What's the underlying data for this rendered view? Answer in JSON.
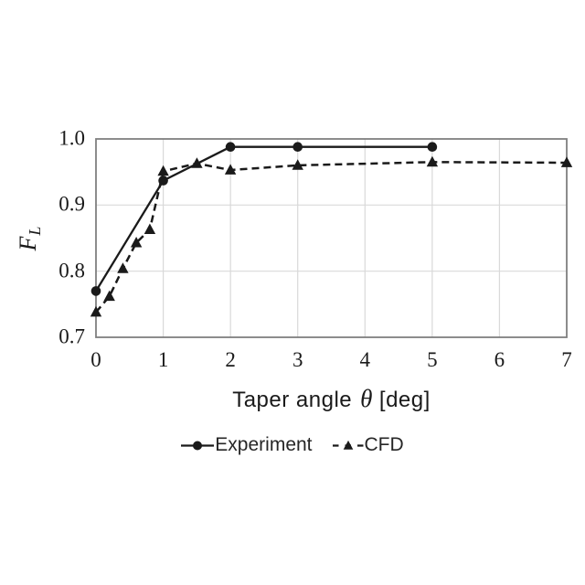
{
  "chart_data": {
    "type": "line",
    "title": "",
    "xlabel": {
      "prefix": "Taper angle",
      "symbol": "θ",
      "suffix": "[deg]"
    },
    "ylabel": {
      "letter": "F",
      "subscript": "L"
    },
    "xlim": [
      0,
      7
    ],
    "ylim": [
      0.7,
      1.0
    ],
    "x_ticks": [
      "0",
      "1",
      "2",
      "3",
      "4",
      "5",
      "6",
      "7"
    ],
    "y_ticks": [
      "1.0",
      "0.9",
      "0.8",
      "0.7"
    ],
    "grid": true,
    "legend_position": "bottom-center",
    "series": [
      {
        "name": "Experiment",
        "marker": "circle",
        "line_style": "solid",
        "color": "#1a1a1a",
        "x": [
          0,
          1,
          2,
          3,
          5
        ],
        "y": [
          0.77,
          0.937,
          0.988,
          0.988,
          0.988
        ]
      },
      {
        "name": "CFD",
        "marker": "triangle",
        "line_style": "dashed",
        "color": "#1a1a1a",
        "x": [
          0,
          0.2,
          0.4,
          0.6,
          0.8,
          1,
          1.5,
          2,
          3,
          5,
          7
        ],
        "y": [
          0.738,
          0.762,
          0.804,
          0.843,
          0.863,
          0.951,
          0.963,
          0.953,
          0.96,
          0.965,
          0.964
        ]
      }
    ],
    "colors": {
      "grid": "#d9d9d9",
      "border": "#7f7f7f",
      "text": "#1a1a1a"
    }
  }
}
